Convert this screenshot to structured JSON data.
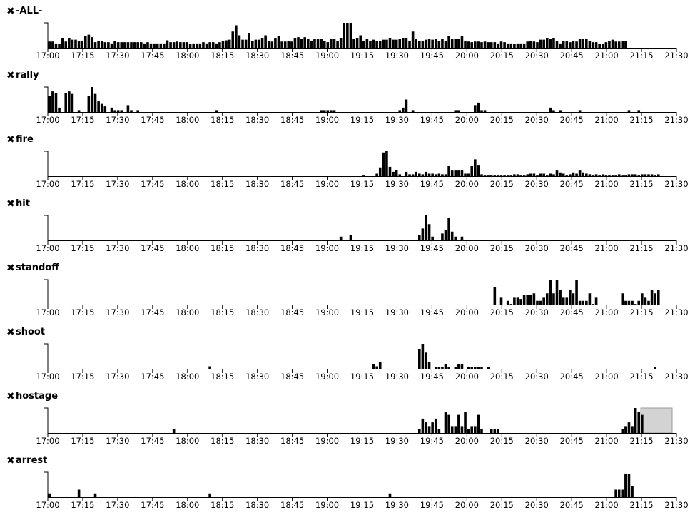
{
  "x_ticks": [
    "17:00",
    "17:15",
    "17:30",
    "17:45",
    "18:00",
    "18:15",
    "18:30",
    "18:45",
    "19:00",
    "19:15",
    "19:30",
    "19:45",
    "20:00",
    "20:15",
    "20:30",
    "20:45",
    "21:00",
    "21:15",
    "21:30"
  ],
  "icons": {
    "remove": "close-icon"
  },
  "colors": {
    "bar": "#000000",
    "axis": "#000000",
    "brush_fill": "#d3d3d3",
    "brush_stroke": "#9a9a9a"
  },
  "chart_data": [
    {
      "type": "bar",
      "title": "-ALL-",
      "remove_label": "✖",
      "x_range": [
        "17:00",
        "21:30"
      ],
      "bin_minutes": 2,
      "ylim": [
        0,
        4
      ],
      "grid": false,
      "values": [
        1,
        1,
        0.7,
        0.6,
        1.6,
        1,
        1.6,
        1.3,
        1.3,
        1.1,
        1.1,
        1.9,
        2.1,
        1.7,
        0.9,
        1.1,
        1.1,
        0.9,
        0.9,
        0.7,
        1.1,
        0.9,
        0.9,
        0.9,
        0.9,
        0.9,
        0.9,
        0.9,
        0.9,
        0.7,
        0.9,
        0.7,
        0.7,
        0.7,
        0.7,
        0.7,
        1.2,
        0.9,
        0.9,
        1,
        0.9,
        0.9,
        0.9,
        0.6,
        0.7,
        0.7,
        0.7,
        0.9,
        0.7,
        0.9,
        0.9,
        0.7,
        0.9,
        1.1,
        1.2,
        1.3,
        2.6,
        3.6,
        2,
        1.3,
        1.3,
        2.4,
        1.1,
        1.3,
        1.3,
        1.6,
        2,
        1.1,
        1,
        1.6,
        1.9,
        1,
        1,
        1.1,
        1,
        1.6,
        1.7,
        1.4,
        1.7,
        1.4,
        1.1,
        1.4,
        1.4,
        1.4,
        1.1,
        0.9,
        1.4,
        1.4,
        1.1,
        1.6,
        4,
        4,
        4,
        1.4,
        1.6,
        2,
        1.1,
        1.4,
        1.1,
        1.3,
        1.1,
        1.1,
        1.3,
        1.3,
        1.6,
        1.3,
        1.3,
        1.4,
        1.6,
        1.6,
        1.1,
        2.6,
        1.4,
        1.1,
        1.1,
        1.3,
        1.4,
        1.3,
        1.4,
        1.1,
        1.4,
        1.1,
        1.9,
        1.4,
        1.4,
        1.4,
        1.9,
        1.1,
        1,
        0.9,
        1,
        1,
        0.9,
        1,
        0.9,
        0.9,
        0.9,
        0.7,
        1,
        0.9,
        0.7,
        0.7,
        0.6,
        0.7,
        0.7,
        0.7,
        1,
        1.1,
        1,
        0.9,
        1.3,
        1.3,
        1.6,
        1.4,
        1.6,
        1.1,
        0.7,
        1.1,
        1.1,
        0.9,
        1.1,
        1,
        1.4,
        1.4,
        1.4,
        1.1,
        0.9,
        0.9,
        0.6,
        0.6,
        0.9,
        1.1,
        1.3,
        1,
        1,
        1.1,
        1.1
      ]
    },
    {
      "type": "bar",
      "title": "rally",
      "remove_label": "✖",
      "x_range": [
        "17:00",
        "21:30"
      ],
      "bin_minutes": 2,
      "ylim": [
        0,
        4
      ],
      "grid": false,
      "values": [
        2.6,
        3.3,
        3,
        0.7,
        0,
        3,
        3.3,
        2.9,
        0,
        0.3,
        0,
        0,
        2.6,
        4,
        2.9,
        1.7,
        1.3,
        0.9,
        0,
        0.7,
        0.3,
        0.3,
        0.3,
        0,
        1.1,
        0.3,
        0,
        0.3,
        0,
        0,
        0,
        0,
        0,
        0,
        0,
        0,
        0,
        0,
        0,
        0,
        0,
        0,
        0,
        0,
        0,
        0,
        0,
        0,
        0,
        0,
        0,
        0.3,
        0,
        0,
        0,
        0,
        0,
        0,
        0,
        0,
        0,
        0,
        0,
        0,
        0,
        0,
        0,
        0,
        0,
        0,
        0,
        0,
        0,
        0,
        0,
        0,
        0,
        0,
        0,
        0,
        0,
        0,
        0,
        0.3,
        0.3,
        0.3,
        0.3,
        0.3,
        0,
        0,
        0,
        0,
        0,
        0,
        0,
        0,
        0,
        0,
        0,
        0,
        0,
        0,
        0,
        0,
        0,
        0,
        0,
        0.3,
        0.7,
        2,
        0,
        0.3,
        0,
        0,
        0,
        0,
        0,
        0,
        0,
        0,
        0,
        0,
        0,
        0,
        0.3,
        0.3,
        0,
        0,
        0,
        0,
        1.1,
        1.5,
        0.3,
        0.3,
        0,
        0,
        0,
        0,
        0,
        0,
        0,
        0,
        0,
        0,
        0,
        0,
        0,
        0,
        0,
        0,
        0,
        0,
        0,
        0.7,
        0.3,
        0,
        0.3,
        0,
        0,
        0,
        0,
        0,
        0.3,
        0,
        0,
        0,
        0,
        0,
        0,
        0,
        0,
        0,
        0,
        0,
        0,
        0,
        0,
        0.3,
        0,
        0,
        0.3
      ]
    },
    {
      "type": "bar",
      "title": "fire",
      "remove_label": "✖",
      "x_range": [
        "17:00",
        "21:30"
      ],
      "bin_minutes": 2,
      "ylim": [
        0,
        4
      ],
      "grid": false,
      "values": [
        0,
        0,
        0,
        0,
        0,
        0,
        0,
        0,
        0,
        0,
        0,
        0,
        0,
        0,
        0,
        0,
        0,
        0,
        0,
        0,
        0,
        0,
        0,
        0,
        0,
        0,
        0,
        0,
        0,
        0,
        0,
        0,
        0,
        0,
        0,
        0,
        0,
        0,
        0,
        0,
        0,
        0,
        0,
        0,
        0,
        0,
        0,
        0,
        0,
        0,
        0,
        0,
        0,
        0,
        0,
        0,
        0,
        0,
        0,
        0,
        0,
        0,
        0,
        0,
        0,
        0,
        0,
        0,
        0,
        0,
        0,
        0,
        0,
        0,
        0,
        0,
        0,
        0,
        0,
        0,
        0,
        0,
        0,
        0,
        0,
        0,
        0,
        0,
        0,
        0,
        0,
        0,
        0,
        0,
        0,
        0,
        0,
        0,
        0,
        0,
        0,
        0,
        0,
        0,
        0,
        0,
        0,
        0,
        0,
        0,
        0,
        0,
        0,
        0,
        0,
        0,
        0,
        0,
        0,
        0,
        0,
        0,
        0,
        0,
        0,
        0,
        0,
        0,
        0,
        0,
        0,
        0,
        0,
        0,
        0,
        0,
        0,
        0,
        0,
        0,
        0,
        0,
        0,
        0,
        0,
        0,
        0,
        0,
        0,
        0,
        0,
        0,
        0,
        0,
        0,
        0,
        0,
        0,
        0,
        0,
        0,
        0,
        0,
        0,
        0,
        0,
        0,
        0,
        0,
        0,
        0,
        0,
        0,
        0,
        0,
        0,
        0,
        0,
        0,
        0,
        0,
        0,
        0,
        0,
        0,
        0,
        0,
        0,
        0,
        0,
        0
      ]
    },
    {
      "type": "bar",
      "title": "hit",
      "remove_label": "✖",
      "x_range": [
        "17:00",
        "21:30"
      ],
      "bin_minutes": 2,
      "ylim": [
        0,
        4
      ],
      "grid": false,
      "values": []
    },
    {
      "type": "bar",
      "title": "standoff",
      "remove_label": "✖",
      "x_range": [
        "17:00",
        "21:30"
      ],
      "bin_minutes": 2,
      "ylim": [
        0,
        4
      ],
      "grid": false,
      "values": []
    },
    {
      "type": "bar",
      "title": "shoot",
      "remove_label": "✖",
      "x_range": [
        "17:00",
        "21:30"
      ],
      "bin_minutes": 2,
      "ylim": [
        0,
        4
      ],
      "grid": false,
      "values": []
    },
    {
      "type": "bar",
      "title": "hostage",
      "remove_label": "✖",
      "x_range": [
        "17:00",
        "21:30"
      ],
      "bin_minutes": 2,
      "ylim": [
        0,
        4
      ],
      "grid": false,
      "brush": [
        "21:15",
        "21:30"
      ],
      "values": []
    },
    {
      "type": "bar",
      "title": "arrest",
      "remove_label": "✖",
      "x_range": [
        "17:00",
        "21:30"
      ],
      "bin_minutes": 2,
      "ylim": [
        0,
        4
      ],
      "grid": false,
      "values": []
    }
  ],
  "sparse_bars": {
    "fire": [
      [
        96,
        0.1
      ],
      [
        100,
        0.4
      ],
      [
        101,
        1.4
      ],
      [
        102,
        3.8
      ],
      [
        103,
        4
      ],
      [
        104,
        1.5
      ],
      [
        105,
        0.7
      ],
      [
        106,
        1
      ],
      [
        107,
        0.3
      ],
      [
        109,
        0.7
      ],
      [
        110,
        0.3
      ],
      [
        111,
        0.3
      ],
      [
        112,
        0.7
      ],
      [
        113,
        0.4
      ],
      [
        114,
        0.3
      ],
      [
        115,
        0.7
      ],
      [
        116,
        0.4
      ],
      [
        117,
        0.4
      ],
      [
        118,
        0.3
      ],
      [
        119,
        0.4
      ],
      [
        120,
        0.3
      ],
      [
        121,
        0.3
      ],
      [
        122,
        1.6
      ],
      [
        123,
        0.9
      ],
      [
        124,
        0.9
      ],
      [
        125,
        0.9
      ],
      [
        126,
        1
      ],
      [
        127,
        0.4
      ],
      [
        128,
        0.4
      ],
      [
        129,
        1.6
      ],
      [
        130,
        2.7
      ],
      [
        131,
        1.7
      ],
      [
        132,
        0.3
      ],
      [
        133,
        0.1
      ],
      [
        134,
        0.1
      ],
      [
        135,
        0.1
      ],
      [
        136,
        0.1
      ],
      [
        137,
        0.1
      ],
      [
        138,
        0.1
      ],
      [
        139,
        0.1
      ],
      [
        140,
        0.1
      ],
      [
        141,
        0.1
      ],
      [
        142,
        0.3
      ],
      [
        143,
        0.3
      ],
      [
        144,
        0.1
      ],
      [
        145,
        0.1
      ],
      [
        146,
        0.3
      ],
      [
        147,
        0.4
      ],
      [
        148,
        0.4
      ],
      [
        149,
        0.1
      ],
      [
        150,
        0.4
      ],
      [
        151,
        0.4
      ],
      [
        152,
        0.1
      ],
      [
        153,
        0.4
      ],
      [
        154,
        0.3
      ],
      [
        155,
        0.9
      ],
      [
        156,
        0.6
      ],
      [
        157,
        0.4
      ],
      [
        158,
        0.1
      ],
      [
        159,
        0.3
      ],
      [
        160,
        0.6
      ],
      [
        161,
        0.4
      ],
      [
        162,
        0.9
      ],
      [
        163,
        0.6
      ],
      [
        164,
        0.4
      ],
      [
        165,
        0.3
      ],
      [
        166,
        0.1
      ],
      [
        167,
        0.3
      ],
      [
        168,
        0.1
      ],
      [
        169,
        0.3
      ],
      [
        170,
        0.1
      ],
      [
        171,
        0.1
      ],
      [
        172,
        0.1
      ],
      [
        173,
        0.1
      ],
      [
        174,
        0.3
      ],
      [
        175,
        0.1
      ],
      [
        176,
        0.1
      ],
      [
        177,
        0.3
      ],
      [
        178,
        0.3
      ],
      [
        179,
        0.3
      ],
      [
        180,
        0.1
      ],
      [
        181,
        0.3
      ],
      [
        182,
        0.3
      ],
      [
        183,
        0.3
      ],
      [
        184,
        0.3
      ],
      [
        185,
        0.1
      ],
      [
        186,
        0.3
      ]
    ],
    "hit": [
      [
        89,
        0.6
      ],
      [
        92,
        0.9
      ],
      [
        113,
        0.9
      ],
      [
        114,
        1.9
      ],
      [
        115,
        4
      ],
      [
        116,
        2.6
      ],
      [
        117,
        0.6
      ],
      [
        118,
        0.1
      ],
      [
        119,
        0.1
      ],
      [
        120,
        1.1
      ],
      [
        121,
        1.6
      ],
      [
        122,
        3.6
      ],
      [
        123,
        1.4
      ],
      [
        124,
        0.6
      ],
      [
        126,
        0.6
      ]
    ],
    "standoff": [
      [
        136,
        2.8
      ],
      [
        138,
        1.1
      ],
      [
        140,
        0.6
      ],
      [
        141,
        0.1
      ],
      [
        142,
        1.1
      ],
      [
        143,
        1.1
      ],
      [
        144,
        0.9
      ],
      [
        145,
        1.6
      ],
      [
        146,
        1.6
      ],
      [
        147,
        1.6
      ],
      [
        148,
        1.8
      ],
      [
        149,
        0.6
      ],
      [
        150,
        0.6
      ],
      [
        151,
        1.1
      ],
      [
        152,
        1.8
      ],
      [
        153,
        4
      ],
      [
        154,
        1.8
      ],
      [
        155,
        4
      ],
      [
        156,
        2.3
      ],
      [
        157,
        1.1
      ],
      [
        158,
        1.1
      ],
      [
        159,
        2.3
      ],
      [
        160,
        1.8
      ],
      [
        161,
        4
      ],
      [
        162,
        0.6
      ],
      [
        163,
        0.6
      ],
      [
        164,
        0.6
      ],
      [
        165,
        1.8
      ],
      [
        166,
        0.1
      ],
      [
        167,
        1.1
      ],
      [
        175,
        1.8
      ],
      [
        176,
        0.6
      ],
      [
        177,
        0.6
      ],
      [
        178,
        0.6
      ],
      [
        179,
        0.1
      ],
      [
        180,
        0.6
      ],
      [
        181,
        1.8
      ],
      [
        182,
        1.1
      ],
      [
        183,
        0.6
      ],
      [
        184,
        2.3
      ],
      [
        185,
        1.8
      ],
      [
        186,
        2.3
      ]
    ],
    "shoot": [
      [
        49,
        0.4
      ],
      [
        99,
        0.7
      ],
      [
        100,
        0.4
      ],
      [
        101,
        1.1
      ],
      [
        113,
        3.2
      ],
      [
        114,
        4
      ],
      [
        115,
        2.6
      ],
      [
        116,
        1.1
      ],
      [
        118,
        0.3
      ],
      [
        119,
        0.3
      ],
      [
        120,
        0.3
      ],
      [
        121,
        0.7
      ],
      [
        122,
        0.3
      ],
      [
        124,
        0.3
      ],
      [
        125,
        0.7
      ],
      [
        126,
        0.7
      ],
      [
        128,
        0.3
      ],
      [
        129,
        0.3
      ],
      [
        130,
        0.3
      ],
      [
        131,
        0.3
      ],
      [
        132,
        0.3
      ],
      [
        134,
        0.3
      ],
      [
        185,
        0.3
      ]
    ],
    "hostage": [
      [
        38,
        0.6
      ],
      [
        113,
        0.6
      ],
      [
        114,
        2.3
      ],
      [
        115,
        1.7
      ],
      [
        116,
        1.1
      ],
      [
        117,
        1.7
      ],
      [
        118,
        2.3
      ],
      [
        119,
        0.6
      ],
      [
        121,
        3.4
      ],
      [
        122,
        2.9
      ],
      [
        123,
        1.1
      ],
      [
        124,
        1.1
      ],
      [
        125,
        2.9
      ],
      [
        126,
        1.1
      ],
      [
        127,
        3.4
      ],
      [
        128,
        0.6
      ],
      [
        129,
        1.1
      ],
      [
        130,
        1.1
      ],
      [
        131,
        2.9
      ],
      [
        132,
        0.6
      ],
      [
        135,
        0.6
      ],
      [
        136,
        0.6
      ],
      [
        137,
        0.6
      ],
      [
        175,
        0.6
      ],
      [
        176,
        1.1
      ],
      [
        177,
        1.7
      ],
      [
        178,
        1.1
      ],
      [
        179,
        4
      ],
      [
        180,
        3.4
      ],
      [
        181,
        2.9
      ]
    ],
    "arrest": [
      [
        0,
        0.6
      ],
      [
        9,
        1.2
      ],
      [
        14,
        0.6
      ],
      [
        49,
        0.6
      ],
      [
        104,
        0.6
      ],
      [
        173,
        1.2
      ],
      [
        174,
        1.2
      ],
      [
        175,
        1.2
      ],
      [
        176,
        3.7
      ],
      [
        177,
        3.7
      ],
      [
        178,
        1.8
      ]
    ]
  }
}
